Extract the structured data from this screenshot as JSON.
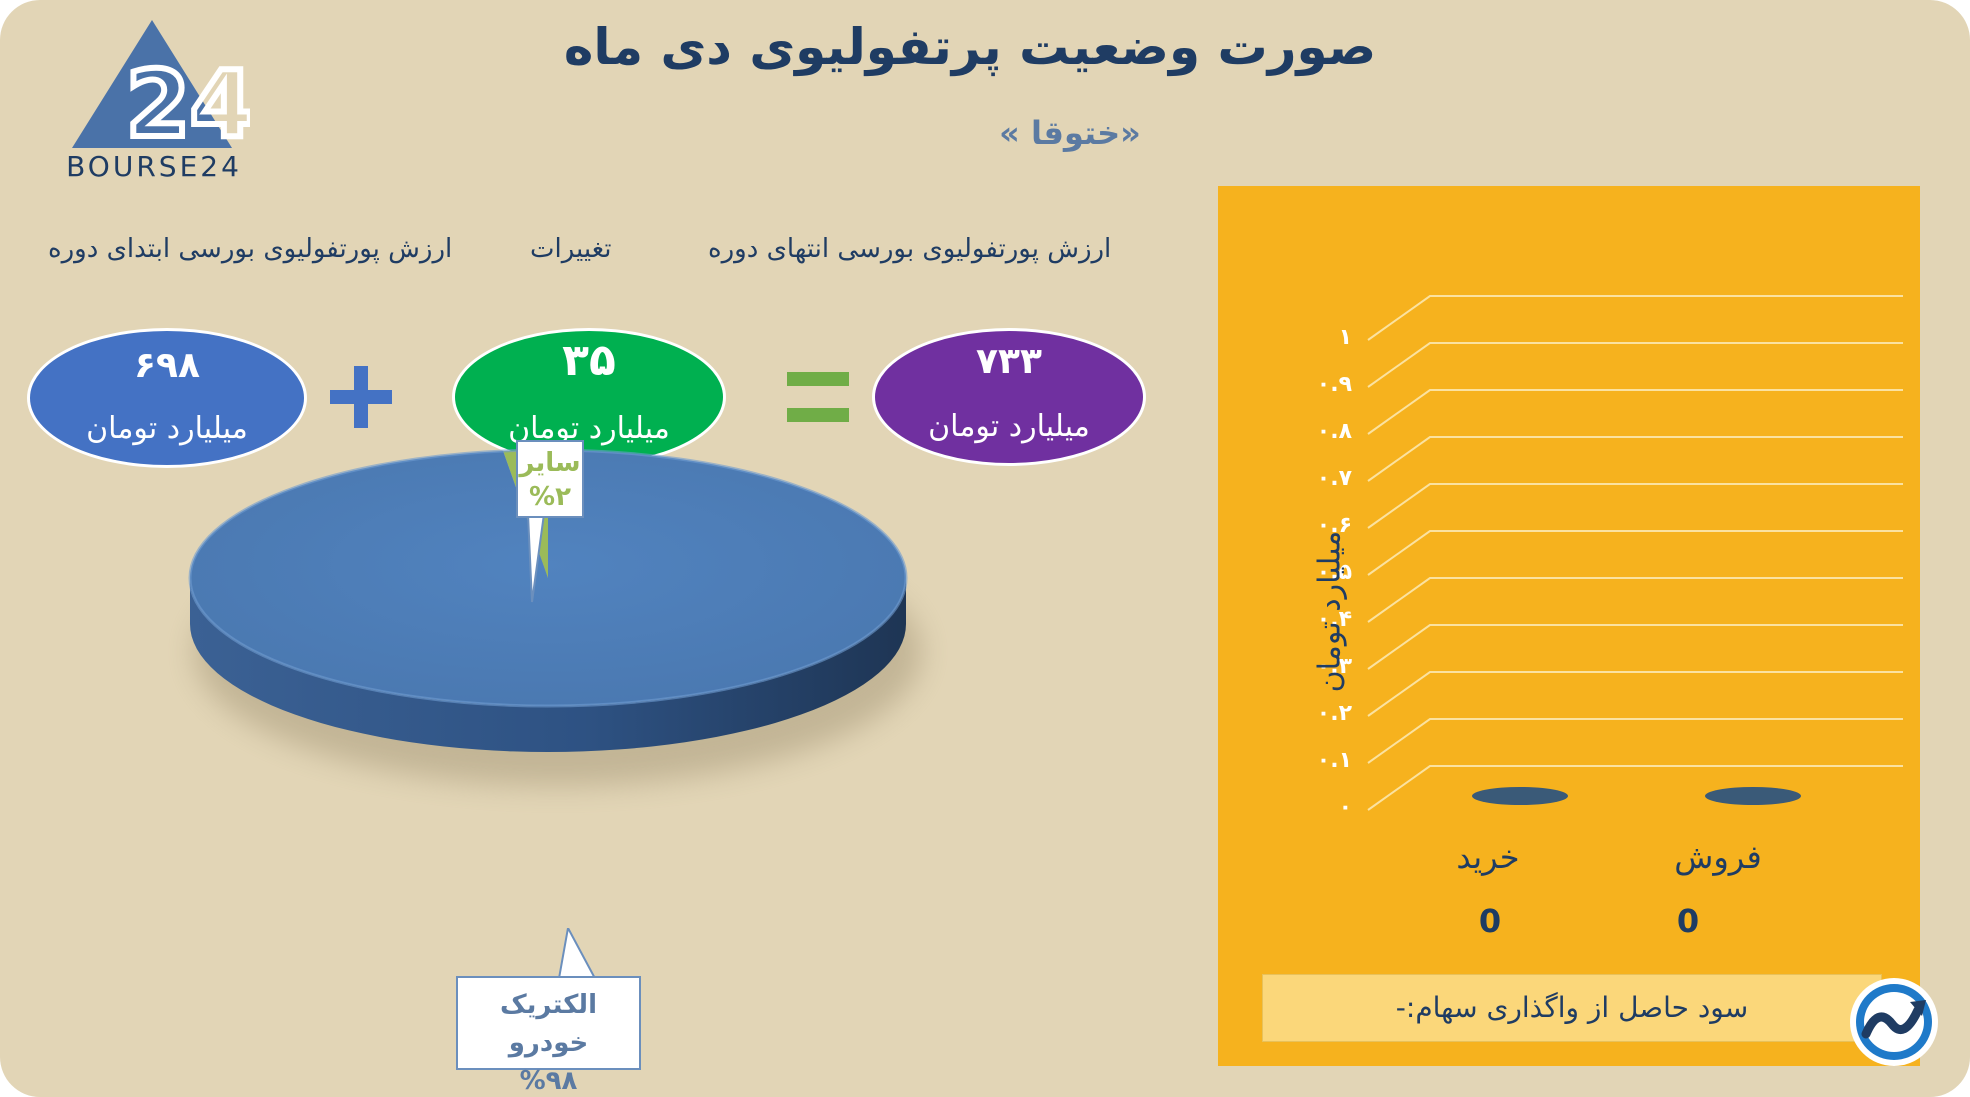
{
  "header": {
    "title": "صورت وضعیت پرتفولیوی دی ماه",
    "subtitle": "«ختوقا »"
  },
  "logo": {
    "text": "BOURSE24",
    "mark": "24"
  },
  "summary": {
    "labels": {
      "start": "ارزش پورتفولیوی بورسی ابتدای دوره",
      "change": "تغییرات",
      "end": "ارزش پورتفولیوی بورسی انتهای دوره"
    },
    "start": {
      "value": "۶۹۸",
      "unit": "میلیارد تومان",
      "color": "#4472c4"
    },
    "change": {
      "value": "۳۵",
      "unit": "میلیارد تومان",
      "color": "#00b050"
    },
    "end": {
      "value": "۷۳۳",
      "unit": "میلیارد تومان",
      "color": "#7030a0"
    },
    "plus_color": "#4472c4",
    "equals_color": "#70ad47"
  },
  "chart_data": [
    {
      "type": "pie",
      "style": "3d",
      "slices": [
        {
          "label": "الکتریک خودرو",
          "percent_label": "%۹۸",
          "value": 98,
          "color": "#4f81bd"
        },
        {
          "label": "سایر",
          "percent_label": "%۲",
          "value": 2,
          "color": "#9bbb59"
        }
      ]
    },
    {
      "type": "bar",
      "style": "3d",
      "categories": [
        "خرید",
        "فروش"
      ],
      "values": [
        0,
        0
      ],
      "value_labels": [
        "0",
        "0"
      ],
      "ylabel": "میلیارد تومان",
      "ylim": [
        0,
        1
      ],
      "yticks": [
        "۰",
        "۰.۱",
        "۰.۲",
        "۰.۳",
        "۰.۴",
        "۰.۵",
        "۰.۶",
        "۰.۷",
        "۰.۸",
        "۰.۹",
        "۱"
      ],
      "grid": true,
      "background": "#f6b21e",
      "bar_color": "#3a5a78"
    }
  ],
  "footer": {
    "profit_label": "سود حاصل از واگذاری سهام:-"
  }
}
